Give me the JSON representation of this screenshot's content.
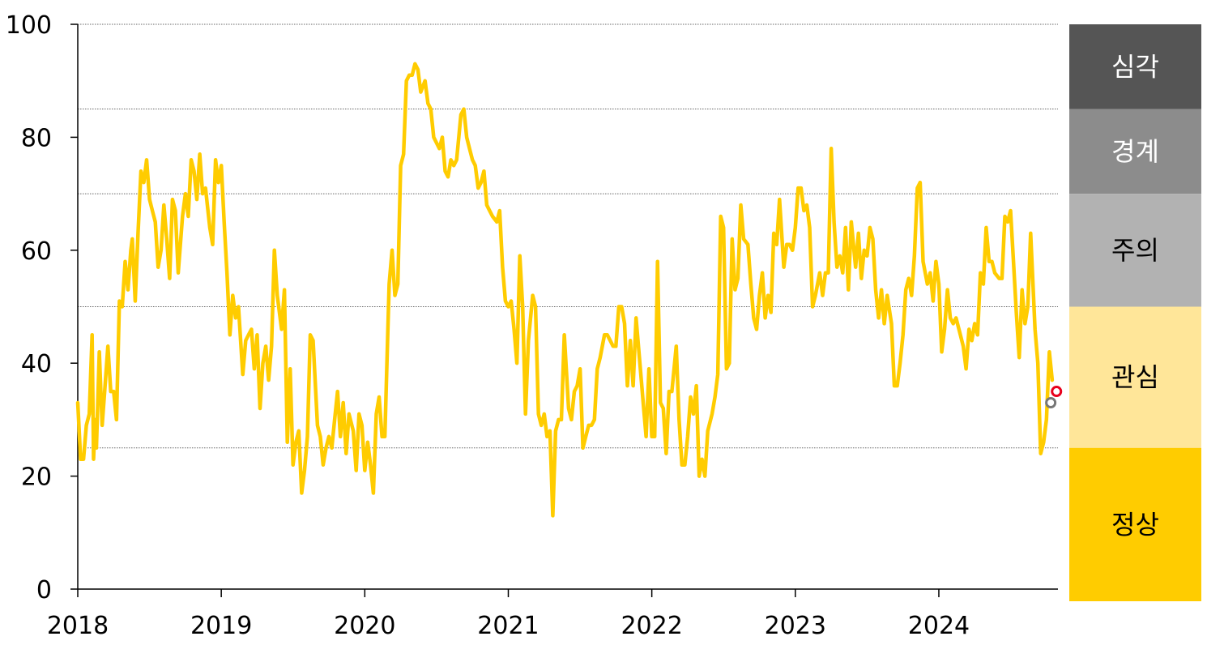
{
  "chart_data": {
    "type": "line",
    "title": "",
    "xlabel": "",
    "ylabel": "",
    "xlim": [
      2018.0,
      2024.83
    ],
    "ylim": [
      0,
      100
    ],
    "y_ticks": [
      "0",
      "20",
      "40",
      "60",
      "80",
      "100"
    ],
    "x_ticks": [
      "2018",
      "2019",
      "2020",
      "2021",
      "2022",
      "2023",
      "2024"
    ],
    "grid": "horizontal dotted lines at 25, 50, 70, 85, 100",
    "grid_levels": [
      25,
      50,
      70,
      85,
      100
    ],
    "legend": "none",
    "line_color": "#FFCC00",
    "zones": [
      {
        "label": "심각",
        "from": 85,
        "to": 100,
        "color": "#555555",
        "text_color": "#ffffff"
      },
      {
        "label": "경계",
        "from": 70,
        "to": 85,
        "color": "#8c8c8c",
        "text_color": "#ffffff"
      },
      {
        "label": "주의",
        "from": 50,
        "to": 70,
        "color": "#b2b2b2",
        "text_color": "#000000"
      },
      {
        "label": "관심",
        "from": 25,
        "to": 50,
        "color": "#FFE699",
        "text_color": "#000000"
      },
      {
        "label": "정상",
        "from": 0,
        "to": 25,
        "color": "#FFCC00",
        "text_color": "#000000"
      }
    ],
    "series": [
      {
        "x": [
          2018.0,
          2018.02,
          2018.04,
          2018.06,
          2018.08,
          2018.1,
          2018.11,
          2018.12,
          2018.13,
          2018.15,
          2018.17,
          2018.19,
          2018.21,
          2018.23,
          2018.25,
          2018.27,
          2018.29,
          2018.31,
          2018.33,
          2018.35,
          2018.37,
          2018.38,
          2018.4,
          2018.42,
          2018.44,
          2018.46,
          2018.48,
          2018.5,
          2018.52,
          2018.54,
          2018.56,
          2018.58,
          2018.6,
          2018.62,
          2018.64,
          2018.66,
          2018.68,
          2018.7,
          2018.73,
          2018.75,
          2018.77,
          2018.79,
          2018.81,
          2018.83,
          2018.85,
          2018.87,
          2018.89,
          2018.92,
          2018.94,
          2018.96,
          2018.98,
          2019.0,
          2019.02,
          2019.04,
          2019.06,
          2019.08,
          2019.1,
          2019.12,
          2019.15,
          2019.17,
          2019.19,
          2019.21,
          2019.23,
          2019.25,
          2019.27,
          2019.29,
          2019.31,
          2019.33,
          2019.35,
          2019.37,
          2019.39,
          2019.42,
          2019.44,
          2019.46,
          2019.48,
          2019.5,
          2019.52,
          2019.54,
          2019.56,
          2019.58,
          2019.6,
          2019.62,
          2019.64,
          2019.67,
          2019.69,
          2019.71,
          2019.73,
          2019.75,
          2019.77,
          2019.79,
          2019.81,
          2019.83,
          2019.85,
          2019.87,
          2019.89,
          2019.92,
          2019.94,
          2019.96,
          2019.98,
          2020.0,
          2020.02,
          2020.04,
          2020.06,
          2020.08,
          2020.1,
          2020.12,
          2020.14,
          2020.17,
          2020.19,
          2020.21,
          2020.23,
          2020.25,
          2020.27,
          2020.29,
          2020.31,
          2020.33,
          2020.35,
          2020.37,
          2020.39,
          2020.42,
          2020.44,
          2020.46,
          2020.48,
          2020.5,
          2020.52,
          2020.54,
          2020.56,
          2020.58,
          2020.6,
          2020.62,
          2020.64,
          2020.67,
          2020.69,
          2020.71,
          2020.73,
          2020.75,
          2020.77,
          2020.79,
          2020.81,
          2020.83,
          2020.85,
          2020.87,
          2020.89,
          2020.92,
          2020.94,
          2020.96,
          2020.98,
          2021.0,
          2021.02,
          2021.04,
          2021.06,
          2021.08,
          2021.1,
          2021.12,
          2021.14,
          2021.17,
          2021.19,
          2021.21,
          2021.23,
          2021.25,
          2021.27,
          2021.29,
          2021.31,
          2021.33,
          2021.35,
          2021.37,
          2021.39,
          2021.42,
          2021.44,
          2021.46,
          2021.48,
          2021.5,
          2021.52,
          2021.54,
          2021.56,
          2021.58,
          2021.6,
          2021.62,
          2021.64,
          2021.67,
          2021.69,
          2021.71,
          2021.73,
          2021.75,
          2021.77,
          2021.79,
          2021.81,
          2021.83,
          2021.85,
          2021.87,
          2021.89,
          2021.92,
          2021.94,
          2021.96,
          2021.98,
          2022.0,
          2022.02,
          2022.04,
          2022.06,
          2022.08,
          2022.1,
          2022.12,
          2022.14,
          2022.17,
          2022.19,
          2022.21,
          2022.23,
          2022.25,
          2022.27,
          2022.29,
          2022.31,
          2022.33,
          2022.35,
          2022.37,
          2022.39,
          2022.42,
          2022.44,
          2022.46,
          2022.48,
          2022.5,
          2022.52,
          2022.54,
          2022.56,
          2022.58,
          2022.6,
          2022.62,
          2022.64,
          2022.67,
          2022.69,
          2022.71,
          2022.73,
          2022.75,
          2022.77,
          2022.79,
          2022.81,
          2022.83,
          2022.85,
          2022.87,
          2022.89,
          2022.92,
          2022.94,
          2022.96,
          2022.98,
          2023.0,
          2023.02,
          2023.04,
          2023.06,
          2023.08,
          2023.1,
          2023.12,
          2023.14,
          2023.17,
          2023.19,
          2023.21,
          2023.23,
          2023.25,
          2023.27,
          2023.29,
          2023.31,
          2023.33,
          2023.35,
          2023.37,
          2023.39,
          2023.42,
          2023.44,
          2023.46,
          2023.48,
          2023.5,
          2023.52,
          2023.54,
          2023.56,
          2023.58,
          2023.6,
          2023.62,
          2023.64,
          2023.67,
          2023.69,
          2023.71,
          2023.73,
          2023.75,
          2023.77,
          2023.79,
          2023.81,
          2023.83,
          2023.85,
          2023.87,
          2023.89,
          2023.92,
          2023.94,
          2023.96,
          2023.98,
          2024.0,
          2024.02,
          2024.04,
          2024.06,
          2024.08,
          2024.1,
          2024.12,
          2024.14,
          2024.17,
          2024.19,
          2024.21,
          2024.23,
          2024.25,
          2024.27,
          2024.29,
          2024.31,
          2024.33,
          2024.35,
          2024.37,
          2024.39,
          2024.42,
          2024.44,
          2024.46,
          2024.48,
          2024.5,
          2024.52,
          2024.54,
          2024.56,
          2024.58,
          2024.6,
          2024.62,
          2024.64,
          2024.67,
          2024.69,
          2024.71,
          2024.73,
          2024.75,
          2024.77,
          2024.79
        ],
        "values": [
          33,
          23,
          23,
          29,
          31,
          45,
          23,
          30,
          25,
          42,
          29,
          36,
          43,
          35,
          35,
          30,
          51,
          50,
          58,
          53,
          60,
          62,
          51,
          63,
          74,
          72,
          76,
          69,
          67,
          65,
          57,
          60,
          68,
          62,
          55,
          69,
          67,
          56,
          66,
          70,
          66,
          76,
          74,
          69,
          77,
          70,
          71,
          64,
          61,
          76,
          72,
          75,
          65,
          56,
          45,
          52,
          48,
          50,
          38,
          44,
          45,
          46,
          39,
          45,
          32,
          40,
          43,
          37,
          43,
          60,
          52,
          46,
          53,
          26,
          39,
          22,
          26,
          28,
          17,
          21,
          27,
          45,
          44,
          29,
          27,
          22,
          25,
          27,
          25,
          30,
          35,
          27,
          33,
          24,
          31,
          28,
          21,
          31,
          29,
          21,
          26,
          22,
          17,
          31,
          34,
          27,
          27,
          54,
          60,
          52,
          54,
          75,
          77,
          90,
          91,
          91,
          93,
          92,
          88,
          90,
          86,
          85,
          80,
          79,
          78,
          80,
          74,
          73,
          76,
          75,
          76,
          84,
          85,
          80,
          78,
          76,
          75,
          71,
          72,
          74,
          68,
          67,
          66,
          65,
          67,
          57,
          51,
          50,
          51,
          46,
          40,
          59,
          50,
          31,
          44,
          52,
          50,
          31,
          29,
          31,
          27,
          28,
          13,
          28,
          30,
          30,
          45,
          32,
          30,
          35,
          36,
          39,
          25,
          27,
          29,
          29,
          30,
          39,
          41,
          45,
          45,
          44,
          43,
          43,
          50,
          50,
          47,
          36,
          44,
          36,
          48,
          39,
          33,
          27,
          39,
          27,
          27,
          58,
          33,
          32,
          24,
          35,
          35,
          43,
          30,
          22,
          22,
          27,
          34,
          31,
          36,
          20,
          23,
          20,
          28,
          31,
          34,
          38,
          66,
          64,
          39,
          40,
          62,
          53,
          55,
          68,
          62,
          61,
          54,
          48,
          46,
          52,
          56,
          48,
          52,
          49,
          63,
          61,
          69,
          57,
          61,
          61,
          60,
          64,
          71,
          71,
          67,
          68,
          64,
          50,
          52,
          56,
          52,
          56,
          56,
          78,
          65,
          57,
          59,
          56,
          64,
          53,
          65,
          57,
          63,
          55,
          60,
          59,
          64,
          62,
          53,
          48,
          53,
          47,
          52,
          47,
          36,
          36,
          40,
          45,
          53,
          55,
          52,
          59,
          71,
          72,
          58,
          54,
          56,
          51,
          58,
          54,
          42,
          46,
          53,
          48,
          47,
          48,
          46,
          43,
          39,
          46,
          44,
          47,
          45,
          56,
          54,
          64,
          58,
          58,
          56,
          55,
          55,
          66,
          65,
          67,
          58,
          49,
          41,
          53,
          47,
          50,
          63,
          46,
          40,
          24,
          26,
          30,
          42,
          37
        ]
      }
    ],
    "markers": [
      {
        "x": 2024.78,
        "value": 33,
        "color": "#777777"
      },
      {
        "x": 2024.82,
        "value": 35,
        "color": "#e8001c"
      }
    ]
  }
}
